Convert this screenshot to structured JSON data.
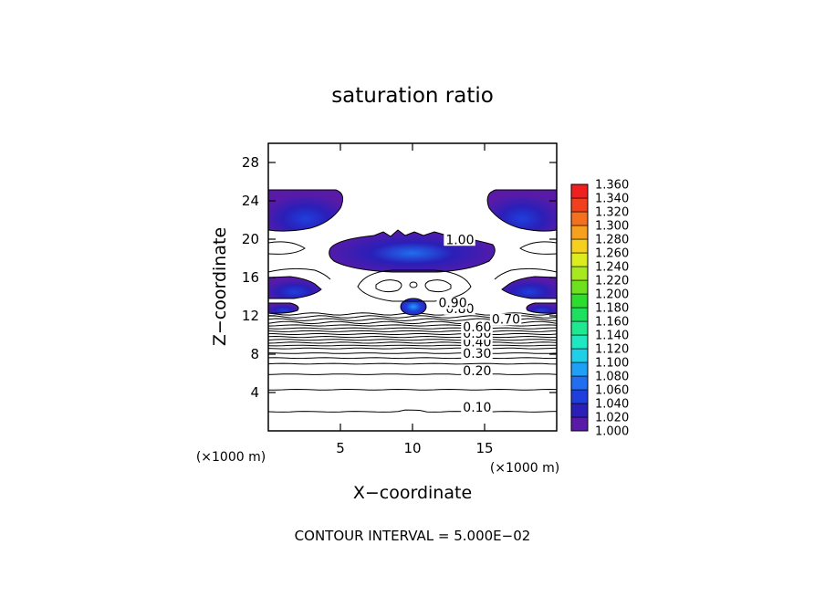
{
  "chart_data": {
    "type": "contour",
    "title": "saturation ratio",
    "xlabel": "X−coordinate",
    "ylabel": "Z−coordinate",
    "x_unit_label": "(×1000 m)",
    "y_unit_label": "(×1000 m)",
    "xlim": [
      0,
      20
    ],
    "ylim": [
      0,
      30
    ],
    "x_ticks": [
      5,
      10,
      15
    ],
    "x_tick_labels": [
      "5",
      "10",
      "15"
    ],
    "y_ticks": [
      4,
      8,
      12,
      16,
      20,
      24,
      28
    ],
    "y_tick_labels": [
      "4",
      "8",
      "12",
      "16",
      "20",
      "24",
      "28"
    ],
    "contour_interval_text": "CONTOUR INTERVAL = 5.000E−02",
    "contour_interval": 0.05,
    "contour_line_labels": [
      {
        "text": "0.10",
        "x": 13.5,
        "z": 2.0
      },
      {
        "text": "0.20",
        "x": 13.5,
        "z": 5.8
      },
      {
        "text": "0.30",
        "x": 13.5,
        "z": 7.6
      },
      {
        "text": "0.40",
        "x": 13.5,
        "z": 8.8
      },
      {
        "text": "0.50",
        "x": 13.5,
        "z": 9.7
      },
      {
        "text": "0.60",
        "x": 13.5,
        "z": 10.4
      },
      {
        "text": "0.70",
        "x": 15.5,
        "z": 11.2
      },
      {
        "text": "0.80",
        "x": 12.3,
        "z": 12.3
      },
      {
        "text": "0.90",
        "x": 11.8,
        "z": 12.9
      },
      {
        "text": "1.00",
        "x": 12.3,
        "z": 19.5
      }
    ],
    "fill_colorbar": {
      "levels": [
        1.0,
        1.02,
        1.04,
        1.06,
        1.08,
        1.1,
        1.12,
        1.14,
        1.16,
        1.18,
        1.2,
        1.22,
        1.24,
        1.26,
        1.28,
        1.3,
        1.32,
        1.34,
        1.36
      ],
      "labels": [
        "1.000",
        "1.020",
        "1.040",
        "1.060",
        "1.080",
        "1.100",
        "1.120",
        "1.140",
        "1.160",
        "1.180",
        "1.200",
        "1.220",
        "1.240",
        "1.260",
        "1.280",
        "1.300",
        "1.320",
        "1.340",
        "1.360"
      ],
      "colors": [
        "#5a1aa8",
        "#2a1fb8",
        "#1f3fdc",
        "#1f6ff0",
        "#1f9ff5",
        "#1fcfe8",
        "#1fe8c0",
        "#1ee890",
        "#1ee060",
        "#2edc2e",
        "#6ee01e",
        "#a8e81e",
        "#dcec1e",
        "#f5d01e",
        "#f5a01e",
        "#f5701e",
        "#f0401e",
        "#f02020",
        "#f08c8c"
      ]
    },
    "supersaturated_regions": [
      {
        "x_range": [
          0,
          5
        ],
        "z_range": [
          20.6,
          25
        ],
        "max": 1.02
      },
      {
        "x_range": [
          15,
          20
        ],
        "z_range": [
          20.6,
          25
        ],
        "max": 1.02
      },
      {
        "x_range": [
          4.5,
          15.5
        ],
        "z_range": [
          16.5,
          20.3
        ],
        "max": 1.06
      },
      {
        "x_range": [
          0,
          5.5
        ],
        "z_range": [
          14.5,
          16.3
        ],
        "max": 1.04
      },
      {
        "x_range": [
          14.5,
          20
        ],
        "z_range": [
          14.5,
          16.3
        ],
        "max": 1.04
      },
      {
        "x_range": [
          0,
          2.8
        ],
        "z_range": [
          12.5,
          13.3
        ],
        "max": 1.04
      },
      {
        "x_range": [
          17.2,
          20
        ],
        "z_range": [
          12.5,
          13.3
        ],
        "max": 1.04
      },
      {
        "x_range": [
          9.2,
          10.8
        ],
        "z_range": [
          12.6,
          14.0
        ],
        "max": 1.08
      }
    ]
  }
}
